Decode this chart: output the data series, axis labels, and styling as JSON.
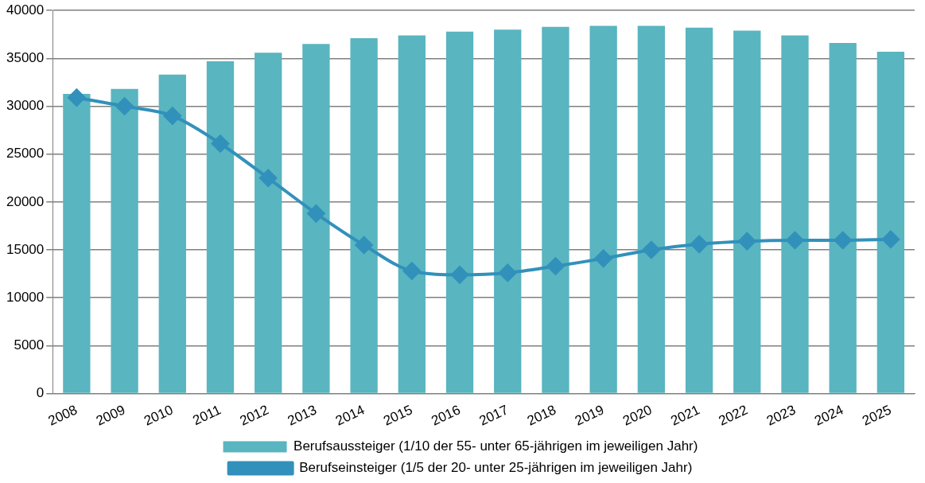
{
  "chart_data": {
    "type": "bar",
    "categories": [
      "2008",
      "2009",
      "2010",
      "2011",
      "2012",
      "2013",
      "2014",
      "2015",
      "2016",
      "2017",
      "2018",
      "2019",
      "2020",
      "2021",
      "2022",
      "2023",
      "2024",
      "2025"
    ],
    "series": [
      {
        "name": "Berufsaussteiger (1/10 der 55- unter 65-jährigen im jeweiligen Jahr)",
        "color": "#59b5c0",
        "values": [
          31300,
          31800,
          33300,
          34700,
          35600,
          36500,
          37100,
          37400,
          37800,
          38000,
          38300,
          38400,
          38400,
          38200,
          37900,
          37400,
          36600,
          35700
        ]
      },
      {
        "name": "Berufseinsteiger (1/5 der 20- unter 25-jährigen im jeweiligen Jahr)",
        "type": "line",
        "color": "#3291bb",
        "marker": "diamond",
        "values": [
          30900,
          30000,
          29000,
          26100,
          22500,
          18800,
          15500,
          12800,
          12400,
          12600,
          13300,
          14100,
          15000,
          15600,
          15900,
          16000,
          16000,
          16100
        ]
      }
    ],
    "ylim": [
      0,
      40000
    ],
    "yticks": [
      0,
      5000,
      10000,
      15000,
      20000,
      25000,
      30000,
      35000,
      40000
    ],
    "grid": "y",
    "legend": "bottom"
  }
}
